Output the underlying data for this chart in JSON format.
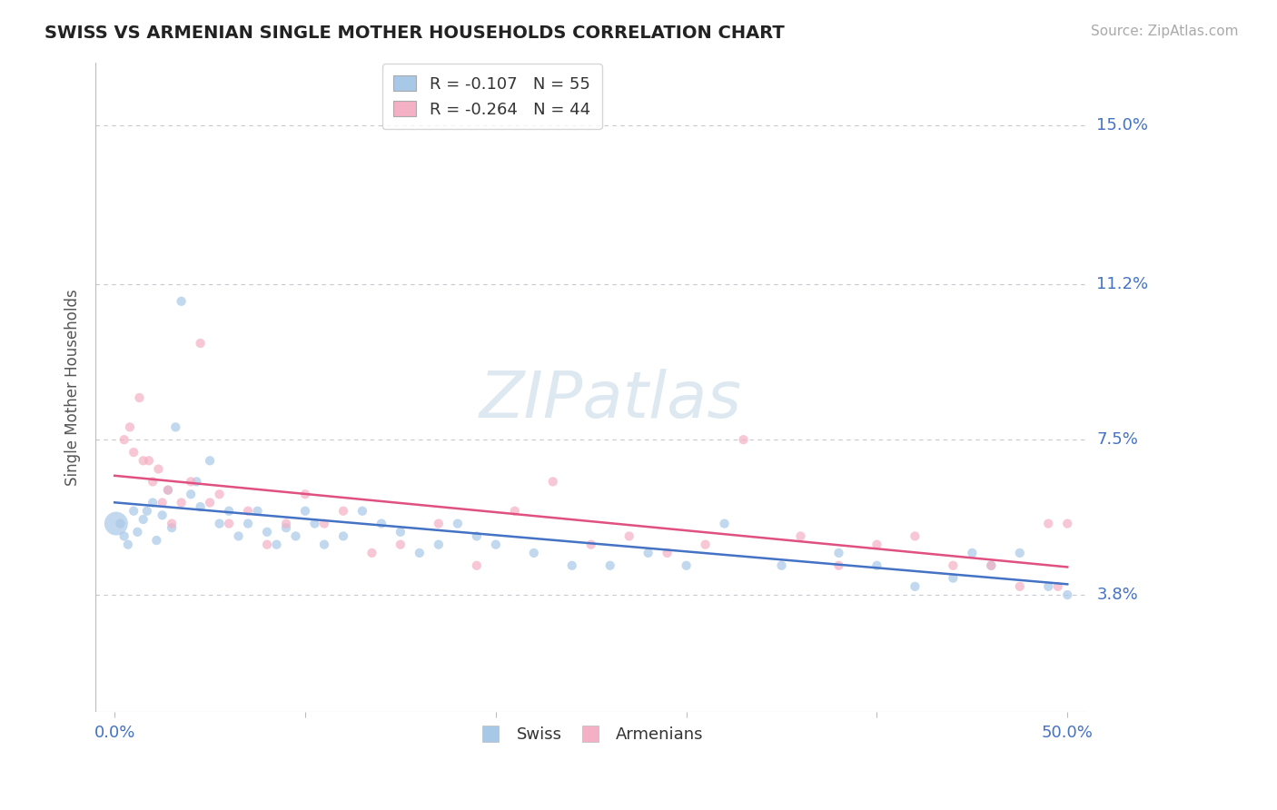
{
  "title": "SWISS VS ARMENIAN SINGLE MOTHER HOUSEHOLDS CORRELATION CHART",
  "source": "Source: ZipAtlas.com",
  "ylabel": "Single Mother Households",
  "xlim": [
    0.0,
    50.0
  ],
  "ylim": [
    1.0,
    16.5
  ],
  "yticks": [
    3.8,
    7.5,
    11.2,
    15.0
  ],
  "ytick_labels": [
    "3.8%",
    "7.5%",
    "11.2%",
    "15.0%"
  ],
  "xtick_labels": [
    "0.0%",
    "50.0%"
  ],
  "grid_color": "#c8c8d0",
  "bg_color": "#ffffff",
  "swiss_color": "#a8c8e8",
  "armenian_color": "#f4b0c4",
  "swiss_line_color": "#4472c4",
  "armenian_line_color": "#e05080",
  "watermark_text": "ZIPatlas",
  "watermark_color": "#dde8f0",
  "swiss_x": [
    0.3,
    0.5,
    0.7,
    1.0,
    1.2,
    1.5,
    1.7,
    2.0,
    2.2,
    2.5,
    2.8,
    3.0,
    3.2,
    3.5,
    4.0,
    4.3,
    4.5,
    5.0,
    5.5,
    6.0,
    6.5,
    7.0,
    7.5,
    8.0,
    8.5,
    9.0,
    9.5,
    10.0,
    10.5,
    11.0,
    12.0,
    13.0,
    14.0,
    15.0,
    16.0,
    17.0,
    18.0,
    19.0,
    20.0,
    22.0,
    24.0,
    26.0,
    28.0,
    30.0,
    32.0,
    35.0,
    38.0,
    40.0,
    42.0,
    44.0,
    45.0,
    46.0,
    47.5,
    49.0,
    50.0
  ],
  "swiss_y": [
    5.5,
    5.2,
    5.0,
    5.8,
    5.3,
    5.6,
    5.8,
    6.0,
    5.1,
    5.7,
    6.3,
    5.4,
    7.8,
    10.8,
    6.2,
    6.5,
    5.9,
    7.0,
    5.5,
    5.8,
    5.2,
    5.5,
    5.8,
    5.3,
    5.0,
    5.4,
    5.2,
    5.8,
    5.5,
    5.0,
    5.2,
    5.8,
    5.5,
    5.3,
    4.8,
    5.0,
    5.5,
    5.2,
    5.0,
    4.8,
    4.5,
    4.5,
    4.8,
    4.5,
    5.5,
    4.5,
    4.8,
    4.5,
    4.0,
    4.2,
    4.8,
    4.5,
    4.8,
    4.0,
    3.8
  ],
  "armenian_x": [
    0.5,
    0.8,
    1.0,
    1.3,
    1.5,
    1.8,
    2.0,
    2.3,
    2.5,
    2.8,
    3.0,
    3.5,
    4.0,
    4.5,
    5.0,
    5.5,
    6.0,
    7.0,
    8.0,
    9.0,
    10.0,
    11.0,
    12.0,
    13.5,
    15.0,
    17.0,
    19.0,
    21.0,
    23.0,
    25.0,
    27.0,
    29.0,
    31.0,
    33.0,
    36.0,
    38.0,
    40.0,
    42.0,
    44.0,
    46.0,
    47.5,
    49.0,
    49.5,
    50.0
  ],
  "armenian_y": [
    7.5,
    7.8,
    7.2,
    8.5,
    7.0,
    7.0,
    6.5,
    6.8,
    6.0,
    6.3,
    5.5,
    6.0,
    6.5,
    9.8,
    6.0,
    6.2,
    5.5,
    5.8,
    5.0,
    5.5,
    6.2,
    5.5,
    5.8,
    4.8,
    5.0,
    5.5,
    4.5,
    5.8,
    6.5,
    5.0,
    5.2,
    4.8,
    5.0,
    7.5,
    5.2,
    4.5,
    5.0,
    5.2,
    4.5,
    4.5,
    4.0,
    5.5,
    4.0,
    5.5
  ],
  "swiss_big_x": 0.08,
  "swiss_big_y": 5.5,
  "swiss_big_size": 350,
  "swiss_marker_size": 55,
  "armenian_marker_size": 55,
  "legend_swiss_label": "R = -0.107   N = 55",
  "legend_armenian_label": "R = -0.264   N = 44",
  "bottom_legend_swiss": "Swiss",
  "bottom_legend_armenian": "Armenians"
}
